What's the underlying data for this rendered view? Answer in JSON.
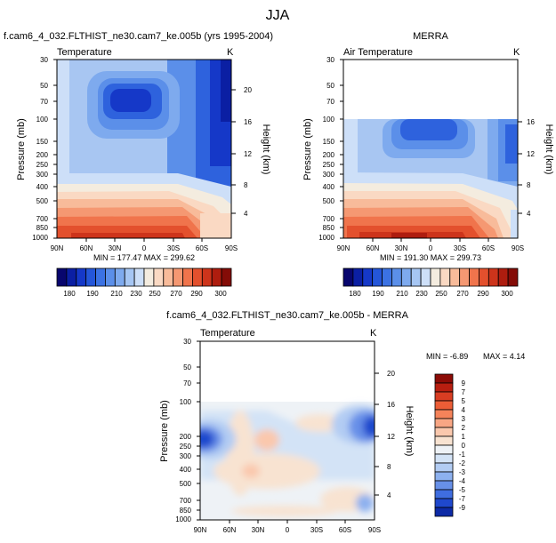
{
  "page": {
    "title": "JJA"
  },
  "chart_data": [
    {
      "type": "heatmap",
      "title": "f.cam6_4_032.FLTHIST_ne30.cam7_ke.005b (yrs 1995-2004)",
      "subtitle": "Temperature",
      "units": "K",
      "ylabel": "Pressure (mb)",
      "ylabel_right": "Height (km)",
      "xticks": [
        "90N",
        "60N",
        "30N",
        "0",
        "30S",
        "60S",
        "90S"
      ],
      "yticks": [
        30,
        50,
        70,
        100,
        150,
        200,
        250,
        300,
        400,
        500,
        700,
        850,
        1000
      ],
      "yticks_labeled": [
        "30",
        "50",
        "70",
        "100",
        "150",
        "200",
        "250",
        "300",
        "400",
        "500",
        "700",
        "850",
        "1000"
      ],
      "height_ticks": [
        "4",
        "8",
        "12",
        "16",
        "20"
      ],
      "ylim": [
        30,
        1000
      ],
      "xlim": [
        90,
        -90
      ],
      "data_top": 30,
      "stats": "MIN = 177.47  MAX = 299.62"
    },
    {
      "type": "heatmap",
      "title": "MERRA",
      "subtitle": "Air Temperature",
      "units": "K",
      "ylabel": "Pressure (mb)",
      "ylabel_right": "Height (km)",
      "xticks": [
        "90N",
        "60N",
        "30N",
        "0",
        "30S",
        "60S",
        "90S"
      ],
      "yticks_labeled": [
        "30",
        "50",
        "70",
        "100",
        "150",
        "200",
        "250",
        "300",
        "400",
        "500",
        "700",
        "850",
        "1000"
      ],
      "height_ticks": [
        "4",
        "8",
        "12",
        "16"
      ],
      "ylim": [
        30,
        1000
      ],
      "xlim": [
        90,
        -90
      ],
      "data_top": 100,
      "stats": "MIN = 191.30  MAX = 299.73"
    },
    {
      "type": "heatmap",
      "title": "f.cam6_4_032.FLTHIST_ne30.cam7_ke.005b - MERRA",
      "subtitle": "Temperature",
      "units": "K",
      "ylabel": "Pressure (mb)",
      "ylabel_right": "Height (km)",
      "xticks": [
        "90N",
        "60N",
        "30N",
        "0",
        "30S",
        "60S",
        "90S"
      ],
      "yticks_labeled": [
        "30",
        "50",
        "70",
        "100",
        "200",
        "250",
        "300",
        "400",
        "500",
        "700",
        "850",
        "1000"
      ],
      "height_ticks": [
        "4",
        "8",
        "12",
        "16",
        "20"
      ],
      "ylim": [
        30,
        1000
      ],
      "xlim": [
        90,
        -90
      ],
      "data_top": 100,
      "stats_min": "MIN = -6.89",
      "stats_max": "MAX =  4.14"
    }
  ],
  "colorbar_abs": {
    "labels": [
      "180",
      "190",
      "210",
      "230",
      "250",
      "270",
      "290",
      "300"
    ],
    "colors": [
      "#08066e",
      "#0b1fa3",
      "#1538c8",
      "#2456d9",
      "#3b72e3",
      "#5b8fe9",
      "#7eaaee",
      "#a6c6f3",
      "#cddff8",
      "#f4ecdf",
      "#fad9c3",
      "#f8bb9a",
      "#f59872",
      "#f0744c",
      "#e3502d",
      "#cd341b",
      "#ae1d0f",
      "#840c07"
    ]
  },
  "colorbar_diff": {
    "labels": [
      "9",
      "7",
      "5",
      "4",
      "3",
      "2",
      "1",
      "0",
      "-1",
      "-2",
      "-3",
      "-4",
      "-5",
      "-7",
      "-9"
    ],
    "colors": [
      "#8c0b06",
      "#b81e10",
      "#d83d22",
      "#ec5d36",
      "#f5835a",
      "#f8a684",
      "#fac8ad",
      "#f8e3d1",
      "#eef2f6",
      "#d3e3f6",
      "#b2ccf3",
      "#8db1ef",
      "#6790e8",
      "#3f6de0",
      "#1f48cd",
      "#0d2aa6"
    ]
  }
}
